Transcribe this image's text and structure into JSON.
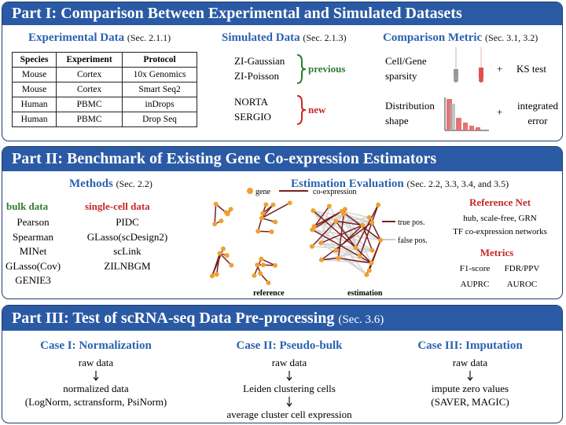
{
  "part1": {
    "title": "Part I: Comparison Between Experimental and Simulated Datasets",
    "experimental": {
      "heading": "Experimental Data",
      "ref": "(Sec. 2.1.1)",
      "table": {
        "header": [
          "Species",
          "Experiment",
          "Protocol"
        ],
        "rows": [
          [
            "Mouse",
            "Cortex",
            "10x Genomics"
          ],
          [
            "Mouse",
            "Cortex",
            "Smart Seq2"
          ],
          [
            "Human",
            "PBMC",
            "inDrops"
          ],
          [
            "Human",
            "PBMC",
            "Drop Seq"
          ]
        ]
      }
    },
    "simulated": {
      "heading": "Simulated Data",
      "ref": "(Sec. 2.1.3)",
      "previous": {
        "items": [
          "ZI-Gaussian",
          "ZI-Poisson"
        ],
        "label": "previous"
      },
      "new": {
        "items": [
          "NORTA",
          "SERGIO"
        ],
        "label": "new"
      }
    },
    "comparison": {
      "heading": "Comparison Metric",
      "ref": "(Sec. 3.1, 3.2)",
      "rows": [
        {
          "left": [
            "Cell/Gene",
            "sparsity"
          ],
          "op": "+",
          "right": [
            "KS test"
          ]
        },
        {
          "left": [
            "Distribution",
            "shape"
          ],
          "op": "+",
          "right": [
            "integrated",
            "error"
          ]
        }
      ]
    }
  },
  "part2": {
    "title": "Part II: Benchmark of Existing Gene Co-expression Estimators",
    "methods": {
      "heading": "Methods",
      "ref": "(Sec. 2.2)",
      "bulk": {
        "heading": "bulk data",
        "items": [
          "Pearson",
          "Spearman",
          "MINet",
          "GLasso(Cov)",
          "GENIE3"
        ]
      },
      "single_cell": {
        "heading": "single-cell data",
        "items": [
          "PIDC",
          "GLasso(scDesign2)",
          "scLink",
          "ZILNBGM"
        ]
      }
    },
    "evaluation": {
      "heading": "Estimation Evaluation",
      "ref": "(Sec. 2.2, 3.3, 3.4, and 3.5)",
      "legend": {
        "gene": "gene",
        "edge": "co-expression",
        "true": "true pos.",
        "false": "false pos."
      },
      "reference": "reference",
      "estimation": "estimation"
    },
    "reference_net": {
      "heading": "Reference Net",
      "lines": [
        "hub, scale-free, GRN",
        "TF co-expression networks"
      ]
    },
    "metrics": {
      "heading": "Metrics",
      "items": [
        "F1-score",
        "FDR/PPV",
        "AUPRC",
        "AUROC"
      ]
    }
  },
  "part3": {
    "title": "Part III: Test of scRNA-seq Data Pre-processing",
    "ref": "(Sec. 3.6)",
    "cases": [
      {
        "heading": "Case I: Normalization",
        "steps": [
          [
            "raw data"
          ],
          [
            "normalized data",
            "(LogNorm, sctransform, PsiNorm)"
          ]
        ]
      },
      {
        "heading": "Case II: Pseudo-bulk",
        "steps": [
          [
            "raw data"
          ],
          [
            "Leiden clustering cells"
          ],
          [
            "average cluster cell expression"
          ]
        ]
      },
      {
        "heading": "Case III: Imputation",
        "steps": [
          [
            "raw data"
          ],
          [
            "impute zero values",
            "(SAVER, MAGIC)"
          ]
        ]
      }
    ]
  }
}
